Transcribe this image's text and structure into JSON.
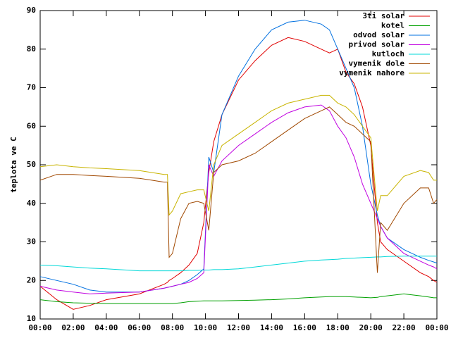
{
  "chart_data": {
    "type": "line",
    "ylabel": "teplota ve C",
    "x": [
      0,
      1,
      2,
      3,
      4,
      6,
      7.5,
      7.7,
      7.8,
      8,
      8.5,
      9,
      9.5,
      9.9,
      10.2,
      10.5,
      11,
      12,
      13,
      14,
      15,
      16,
      17,
      17.5,
      18,
      18.5,
      19,
      19.5,
      20,
      20.4,
      20.6,
      21,
      22,
      23,
      23.5,
      23.8,
      24
    ],
    "xlim": [
      0,
      24
    ],
    "xticks": [
      {
        "value": 0,
        "label": "00:00"
      },
      {
        "value": 2,
        "label": "02:00"
      },
      {
        "value": 4,
        "label": "04:00"
      },
      {
        "value": 6,
        "label": "06:00"
      },
      {
        "value": 8,
        "label": "08:00"
      },
      {
        "value": 10,
        "label": "10:00"
      },
      {
        "value": 12,
        "label": "12:00"
      },
      {
        "value": 14,
        "label": "14:00"
      },
      {
        "value": 16,
        "label": "16:00"
      },
      {
        "value": 18,
        "label": "18:00"
      },
      {
        "value": 20,
        "label": "20:00"
      },
      {
        "value": 22,
        "label": "22:00"
      },
      {
        "value": 24,
        "label": "00:00"
      }
    ],
    "ylim": [
      10,
      90
    ],
    "yticks": [
      10,
      20,
      30,
      40,
      50,
      60,
      70,
      80,
      90
    ],
    "grid": false,
    "legend": "top-right",
    "series": [
      {
        "name": "3ti solar",
        "color": "#e00000",
        "values": [
          18.5,
          15,
          12.5,
          13.5,
          15,
          16.5,
          19,
          19.5,
          20,
          20.5,
          22,
          24,
          27,
          35,
          48,
          56,
          63,
          72,
          77,
          81,
          83,
          82,
          80,
          79,
          80,
          74,
          71,
          65,
          55,
          35,
          30,
          28,
          25,
          22,
          21,
          20,
          19.5
        ]
      },
      {
        "name": "kotel",
        "color": "#00a000",
        "values": [
          15,
          14.5,
          14.2,
          14.1,
          14,
          14,
          14,
          14,
          14,
          14,
          14.2,
          14.5,
          14.6,
          14.7,
          14.7,
          14.7,
          14.7,
          14.8,
          14.9,
          15,
          15.2,
          15.5,
          15.7,
          15.8,
          15.8,
          15.8,
          15.7,
          15.6,
          15.5,
          15.6,
          15.8,
          16,
          16.5,
          16,
          15.7,
          15.5,
          15.5
        ]
      },
      {
        "name": "odvod solar",
        "color": "#0070e0",
        "values": [
          21,
          20,
          19,
          17.5,
          17,
          17,
          18,
          18.2,
          18.3,
          18.5,
          19,
          20,
          21.5,
          23,
          52,
          48,
          63,
          73,
          80,
          85,
          87,
          87.5,
          86.5,
          85,
          80,
          75,
          70,
          60,
          45,
          37,
          34,
          31,
          28,
          26,
          25.2,
          24.8,
          24.5
        ]
      },
      {
        "name": "privod solar",
        "color": "#c000e0",
        "values": [
          18.5,
          17.5,
          17,
          16.5,
          16.7,
          17,
          18,
          18.2,
          18.3,
          18.5,
          19,
          19.5,
          20.5,
          22,
          50,
          47,
          51,
          55,
          58,
          61,
          63.5,
          65,
          65.5,
          64,
          60,
          57,
          52,
          45,
          40,
          36,
          34,
          31,
          27,
          25,
          24,
          23.5,
          23
        ]
      },
      {
        "name": "kutloch",
        "color": "#00d8d8",
        "values": [
          24,
          23.8,
          23.5,
          23.2,
          23,
          22.5,
          22.5,
          22.5,
          22.5,
          22.5,
          22.5,
          22.6,
          22.6,
          22.7,
          22.7,
          22.8,
          22.8,
          23,
          23.5,
          24,
          24.5,
          25,
          25.3,
          25.4,
          25.5,
          25.7,
          25.8,
          25.9,
          26,
          26.1,
          26.1,
          26.2,
          26.3,
          26.3,
          26.3,
          26.3,
          26.3
        ]
      },
      {
        "name": "vymenik dole",
        "color": "#a04800",
        "values": [
          46,
          47.5,
          47.5,
          47.2,
          47,
          46.5,
          45.5,
          45.5,
          26,
          27,
          36,
          40,
          40.5,
          40,
          33,
          48,
          50,
          51,
          53,
          56,
          59,
          62,
          64,
          65,
          63,
          61,
          60,
          58,
          56,
          22,
          35,
          33,
          40,
          44,
          44,
          40,
          41
        ]
      },
      {
        "name": "vymenik nahore",
        "color": "#c8b400",
        "values": [
          49.5,
          50,
          49.5,
          49.2,
          49,
          48.5,
          47.5,
          47.5,
          37,
          38,
          42.5,
          43,
          43.5,
          43.5,
          38,
          50,
          55,
          58,
          61,
          64,
          66,
          67,
          68,
          68,
          66,
          65,
          63,
          60,
          57,
          38,
          42,
          42,
          47,
          48.5,
          48,
          46,
          46
        ]
      }
    ]
  }
}
